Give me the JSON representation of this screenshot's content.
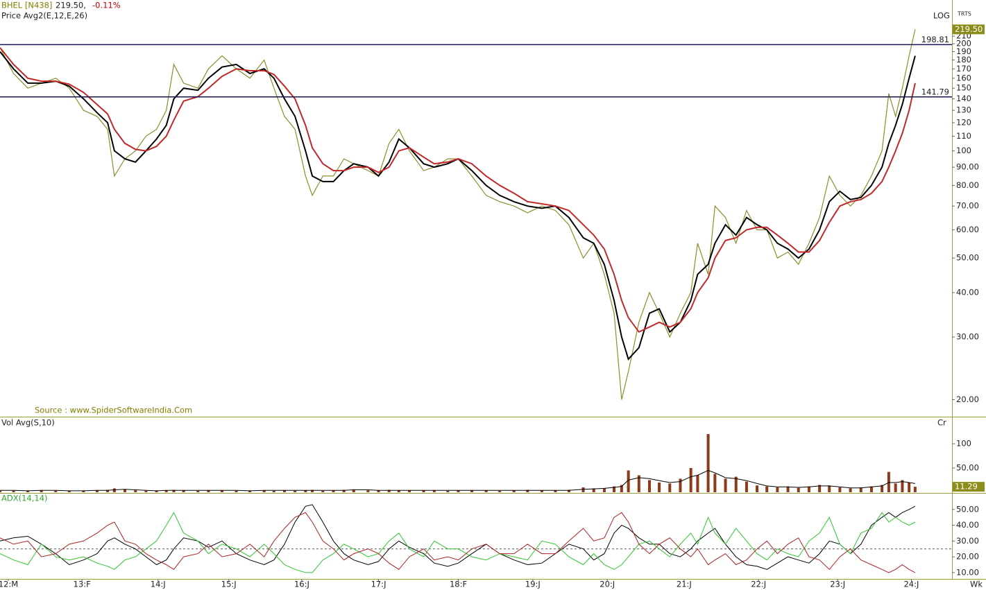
{
  "chart_data": [
    {
      "type": "line",
      "symbol": "BHEL [N438]",
      "price_label": "219.50,",
      "change_label": "-0.11%",
      "subtitle": "Price  Avg2(E,12,E,26)",
      "scale_label": "LOG",
      "corner_label": "TRTS",
      "source": "Source : www.SpiderSoftwareIndia.Com",
      "log_scale": true,
      "xlim": [
        2011.9,
        2024.55
      ],
      "ylim": [
        18,
        232
      ],
      "yticks": [
        {
          "value": 20,
          "label": "20.00"
        },
        {
          "value": 30,
          "label": "30.00"
        },
        {
          "value": 40,
          "label": "40.00"
        },
        {
          "value": 50,
          "label": "50.00"
        },
        {
          "value": 60,
          "label": "60.00"
        },
        {
          "value": 70,
          "label": "70.00"
        },
        {
          "value": 80,
          "label": "80.00"
        },
        {
          "value": 90,
          "label": "90.00"
        },
        100,
        110,
        120,
        130,
        140,
        150,
        160,
        170,
        180,
        190,
        200,
        210,
        220
      ],
      "hlines": [
        198.81,
        141.79
      ],
      "hline_color": "#15154f",
      "last_marker": {
        "value": 219.5,
        "label": "219.50"
      },
      "x": [
        2011.9,
        2012.08,
        2012.27,
        2012.45,
        2012.64,
        2012.82,
        2013.01,
        2013.19,
        2013.33,
        2013.42,
        2013.56,
        2013.7,
        2013.84,
        2013.98,
        2014.11,
        2014.21,
        2014.34,
        2014.53,
        2014.67,
        2014.85,
        2015.04,
        2015.22,
        2015.41,
        2015.54,
        2015.68,
        2015.82,
        2015.96,
        2016.05,
        2016.19,
        2016.33,
        2016.47,
        2016.6,
        2016.79,
        2016.93,
        2017.07,
        2017.2,
        2017.34,
        2017.53,
        2017.67,
        2017.85,
        2017.99,
        2018.17,
        2018.36,
        2018.54,
        2018.73,
        2018.91,
        2019.1,
        2019.28,
        2019.46,
        2019.65,
        2019.79,
        2019.93,
        2020.06,
        2020.16,
        2020.25,
        2020.39,
        2020.53,
        2020.66,
        2020.8,
        2020.94,
        2021.08,
        2021.17,
        2021.31,
        2021.4,
        2021.54,
        2021.68,
        2021.82,
        2021.96,
        2022.09,
        2022.23,
        2022.37,
        2022.51,
        2022.65,
        2022.79,
        2022.92,
        2023.06,
        2023.2,
        2023.34,
        2023.48,
        2023.62,
        2023.71,
        2023.8,
        2023.89,
        2023.98,
        2024.06
      ],
      "series": [
        {
          "color": "#8c8c2a",
          "width": 1.2,
          "values": [
            195,
            165,
            150,
            155,
            160,
            150,
            130,
            125,
            115,
            85,
            95,
            100,
            110,
            115,
            130,
            175,
            155,
            150,
            170,
            185,
            170,
            160,
            180,
            150,
            125,
            115,
            85,
            75,
            85,
            85,
            95,
            92,
            88,
            85,
            105,
            115,
            100,
            88,
            90,
            95,
            95,
            85,
            75,
            72,
            70,
            67,
            70,
            68,
            62,
            50,
            55,
            45,
            35,
            20,
            24,
            33,
            40,
            35,
            30,
            35,
            40,
            55,
            45,
            70,
            65,
            55,
            68,
            60,
            60,
            50,
            52,
            48,
            55,
            65,
            85,
            75,
            70,
            75,
            85,
            100,
            145,
            125,
            150,
            185,
            219.5
          ]
        },
        {
          "color": "#000000",
          "width": 2,
          "values": [
            190,
            170,
            155,
            155,
            157,
            152,
            140,
            128,
            120,
            100,
            95,
            93,
            100,
            108,
            118,
            140,
            150,
            148,
            160,
            172,
            175,
            165,
            170,
            160,
            140,
            125,
            100,
            85,
            82,
            82,
            88,
            92,
            90,
            85,
            93,
            108,
            102,
            92,
            90,
            92,
            95,
            88,
            80,
            75,
            72,
            70,
            69,
            70,
            65,
            57,
            55,
            48,
            38,
            30,
            26,
            28,
            35,
            36,
            31,
            33,
            38,
            45,
            48,
            55,
            62,
            58,
            65,
            62,
            60,
            55,
            53,
            50,
            53,
            60,
            72,
            77,
            73,
            74,
            80,
            90,
            105,
            118,
            135,
            160,
            185
          ]
        },
        {
          "color": "#c0282a",
          "width": 2,
          "values": [
            195,
            175,
            160,
            157,
            157,
            154,
            146,
            135,
            127,
            115,
            105,
            101,
            100,
            103,
            110,
            122,
            138,
            142,
            150,
            162,
            170,
            168,
            168,
            164,
            152,
            140,
            118,
            102,
            92,
            88,
            88,
            90,
            90,
            87,
            90,
            100,
            102,
            96,
            92,
            93,
            95,
            92,
            85,
            80,
            76,
            72,
            71,
            70,
            68,
            62,
            58,
            53,
            45,
            38,
            34,
            31,
            32,
            33,
            32,
            33,
            36,
            40,
            44,
            50,
            56,
            57,
            60,
            61,
            61,
            58,
            55,
            52,
            52,
            56,
            63,
            70,
            72,
            73,
            76,
            82,
            90,
            100,
            112,
            130,
            155
          ]
        }
      ]
    },
    {
      "type": "bar",
      "subtitle": "Vol  Avg(S,10)",
      "corner_label": "Cr",
      "log_scale": false,
      "xlim": [
        2011.9,
        2024.55
      ],
      "ylim": [
        0,
        153
      ],
      "yticks": [
        100,
        {
          "value": 50,
          "label": "50.00"
        }
      ],
      "last_marker": {
        "value": 11.29,
        "label": "11.29"
      },
      "x": [
        2011.9,
        2012.08,
        2012.27,
        2012.45,
        2012.64,
        2012.82,
        2013.01,
        2013.19,
        2013.33,
        2013.42,
        2013.56,
        2013.7,
        2013.84,
        2013.98,
        2014.11,
        2014.21,
        2014.34,
        2014.53,
        2014.67,
        2014.85,
        2015.04,
        2015.22,
        2015.41,
        2015.54,
        2015.68,
        2015.82,
        2015.96,
        2016.05,
        2016.19,
        2016.33,
        2016.47,
        2016.6,
        2016.79,
        2016.93,
        2017.07,
        2017.2,
        2017.34,
        2017.53,
        2017.67,
        2017.85,
        2017.99,
        2018.17,
        2018.36,
        2018.54,
        2018.73,
        2018.91,
        2019.1,
        2019.28,
        2019.46,
        2019.65,
        2019.79,
        2019.93,
        2020.06,
        2020.16,
        2020.25,
        2020.39,
        2020.53,
        2020.66,
        2020.8,
        2020.94,
        2021.08,
        2021.17,
        2021.31,
        2021.4,
        2021.54,
        2021.68,
        2021.82,
        2021.96,
        2022.09,
        2022.23,
        2022.37,
        2022.51,
        2022.65,
        2022.79,
        2022.92,
        2023.06,
        2023.2,
        2023.34,
        2023.48,
        2023.62,
        2023.71,
        2023.8,
        2023.89,
        2023.98,
        2024.06
      ],
      "series": [
        {
          "color": "#8b3a1a",
          "values": [
            3,
            3,
            3,
            4,
            3,
            3,
            3,
            4,
            5,
            8,
            6,
            4,
            3,
            3,
            4,
            5,
            4,
            3,
            4,
            4,
            3,
            3,
            4,
            3,
            4,
            3,
            4,
            5,
            3,
            4,
            5,
            6,
            4,
            4,
            5,
            4,
            4,
            4,
            4,
            3,
            4,
            4,
            4,
            3,
            4,
            5,
            4,
            4,
            5,
            10,
            8,
            8,
            12,
            15,
            45,
            35,
            25,
            20,
            18,
            28,
            50,
            35,
            120,
            38,
            28,
            32,
            22,
            14,
            12,
            10,
            12,
            9,
            12,
            15,
            14,
            10,
            8,
            10,
            12,
            15,
            42,
            18,
            25,
            20,
            11.29
          ]
        },
        {
          "type": "line",
          "color": "#000000",
          "width": 1,
          "values": [
            4,
            4,
            3,
            4,
            4,
            3,
            3,
            4,
            4,
            5,
            6,
            5,
            4,
            3,
            4,
            4,
            4,
            4,
            4,
            4,
            4,
            3,
            4,
            4,
            4,
            4,
            4,
            4,
            4,
            4,
            4,
            5,
            5,
            4,
            4,
            4,
            4,
            4,
            4,
            4,
            4,
            4,
            4,
            4,
            4,
            4,
            4,
            4,
            4,
            6,
            7,
            8,
            10,
            12,
            25,
            30,
            28,
            24,
            20,
            22,
            32,
            35,
            45,
            40,
            30,
            28,
            24,
            18,
            13,
            11,
            11,
            10,
            11,
            13,
            13,
            11,
            9,
            9,
            11,
            13,
            20,
            20,
            22,
            20,
            18
          ]
        }
      ]
    },
    {
      "type": "line",
      "subtitle": "ADX(14,14)",
      "x_unit_label": "Wk",
      "log_scale": false,
      "xlim": [
        2011.9,
        2024.55
      ],
      "ylim": [
        6,
        60
      ],
      "yticks": [
        {
          "value": 10,
          "label": "10.00"
        },
        {
          "value": 20,
          "label": "20.00"
        },
        {
          "value": 30,
          "label": "30.00"
        },
        {
          "value": 40,
          "label": "40.00"
        },
        {
          "value": 50,
          "label": "50.00"
        }
      ],
      "ref_lines": [
        25
      ],
      "xticks": [
        {
          "value": 2012.01,
          "label": "12:M"
        },
        {
          "value": 2012.99,
          "label": "13:F"
        },
        {
          "value": 2014.0,
          "label": "14:J"
        },
        {
          "value": 2014.94,
          "label": "15:J"
        },
        {
          "value": 2015.91,
          "label": "16:J"
        },
        {
          "value": 2016.93,
          "label": "17:J"
        },
        {
          "value": 2017.99,
          "label": "18:F"
        },
        {
          "value": 2018.98,
          "label": "19:J"
        },
        {
          "value": 2019.97,
          "label": "20:J"
        },
        {
          "value": 2020.99,
          "label": "21:J"
        },
        {
          "value": 2021.98,
          "label": "22:J"
        },
        {
          "value": 2023.03,
          "label": "23:J"
        },
        {
          "value": 2024.01,
          "label": "24:J"
        }
      ],
      "x": [
        2011.9,
        2012.08,
        2012.27,
        2012.45,
        2012.64,
        2012.82,
        2013.01,
        2013.19,
        2013.33,
        2013.42,
        2013.56,
        2013.7,
        2013.84,
        2013.98,
        2014.11,
        2014.21,
        2014.34,
        2014.53,
        2014.67,
        2014.85,
        2015.04,
        2015.22,
        2015.41,
        2015.54,
        2015.68,
        2015.82,
        2015.96,
        2016.05,
        2016.19,
        2016.33,
        2016.47,
        2016.6,
        2016.79,
        2016.93,
        2017.07,
        2017.2,
        2017.34,
        2017.53,
        2017.67,
        2017.85,
        2017.99,
        2018.17,
        2018.36,
        2018.54,
        2018.73,
        2018.91,
        2019.1,
        2019.28,
        2019.46,
        2019.65,
        2019.79,
        2019.93,
        2020.06,
        2020.16,
        2020.25,
        2020.39,
        2020.53,
        2020.66,
        2020.8,
        2020.94,
        2021.08,
        2021.17,
        2021.31,
        2021.4,
        2021.54,
        2021.68,
        2021.82,
        2021.96,
        2022.09,
        2022.23,
        2022.37,
        2022.51,
        2022.65,
        2022.79,
        2022.92,
        2023.06,
        2023.2,
        2023.34,
        2023.48,
        2023.62,
        2023.71,
        2023.8,
        2023.89,
        2023.98,
        2024.06
      ],
      "series": [
        {
          "color": "#000000",
          "width": 1,
          "values": [
            30,
            32,
            33,
            28,
            22,
            15,
            18,
            22,
            30,
            32,
            28,
            25,
            20,
            15,
            18,
            25,
            32,
            30,
            26,
            30,
            22,
            18,
            15,
            18,
            28,
            42,
            52,
            53,
            42,
            30,
            22,
            18,
            15,
            17,
            25,
            30,
            26,
            22,
            16,
            14,
            16,
            22,
            28,
            22,
            18,
            15,
            16,
            22,
            28,
            25,
            18,
            22,
            35,
            40,
            38,
            32,
            28,
            28,
            22,
            20,
            25,
            30,
            35,
            38,
            28,
            20,
            15,
            14,
            12,
            16,
            20,
            18,
            16,
            22,
            30,
            28,
            22,
            28,
            40,
            45,
            48,
            45,
            48,
            50,
            52
          ]
        },
        {
          "color": "#2fc42f",
          "width": 1,
          "values": [
            22,
            18,
            15,
            28,
            20,
            18,
            20,
            16,
            14,
            12,
            18,
            20,
            25,
            30,
            40,
            48,
            35,
            30,
            22,
            28,
            25,
            20,
            28,
            22,
            15,
            12,
            10,
            10,
            18,
            22,
            28,
            25,
            20,
            22,
            30,
            35,
            25,
            20,
            30,
            25,
            25,
            20,
            18,
            22,
            20,
            18,
            30,
            28,
            20,
            15,
            22,
            15,
            12,
            15,
            20,
            28,
            30,
            25,
            20,
            28,
            35,
            28,
            45,
            35,
            28,
            38,
            30,
            22,
            18,
            25,
            22,
            20,
            30,
            35,
            45,
            28,
            22,
            35,
            38,
            48,
            42,
            45,
            42,
            40,
            42
          ]
        },
        {
          "color": "#a82222",
          "width": 1,
          "values": [
            32,
            28,
            30,
            20,
            22,
            28,
            30,
            35,
            40,
            42,
            30,
            28,
            22,
            18,
            15,
            12,
            20,
            22,
            28,
            20,
            22,
            28,
            20,
            30,
            38,
            45,
            48,
            42,
            30,
            25,
            18,
            22,
            25,
            22,
            16,
            12,
            20,
            25,
            18,
            20,
            18,
            25,
            28,
            22,
            22,
            28,
            22,
            22,
            30,
            38,
            30,
            32,
            45,
            48,
            42,
            28,
            22,
            28,
            32,
            25,
            20,
            25,
            15,
            18,
            22,
            15,
            18,
            25,
            30,
            22,
            28,
            32,
            20,
            18,
            12,
            20,
            25,
            18,
            15,
            12,
            10,
            12,
            15,
            12,
            10
          ]
        }
      ]
    }
  ]
}
